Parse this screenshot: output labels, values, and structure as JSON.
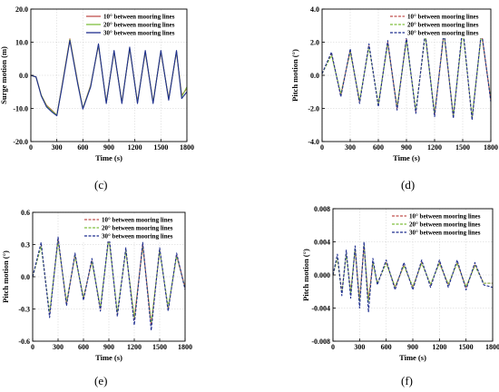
{
  "figure": {
    "captions": [
      "(c)",
      "(d)",
      "(e)",
      "(f)"
    ],
    "series_colors": [
      "#c0504d",
      "#7fbf3f",
      "#1f2f8f"
    ]
  },
  "chart_data": [
    {
      "id": "c",
      "type": "line",
      "caption": "(c)",
      "xlabel": "Time (s)",
      "ylabel": "Surge motion (m)",
      "xlim": [
        0,
        1800
      ],
      "ylim": [
        -20,
        20
      ],
      "xticks": [
        "0",
        "300",
        "600",
        "900",
        "1200",
        "1500",
        "1800"
      ],
      "yticks": [
        "-20.0",
        "-10.0",
        "0.0",
        "10.0",
        "20.0"
      ],
      "xtick_values": [
        0,
        300,
        600,
        900,
        1200,
        1500,
        1800
      ],
      "ytick_values": [
        -20,
        -10,
        0,
        10,
        20
      ],
      "legend_position": "top-right",
      "line_styles": [
        "solid",
        "solid",
        "solid"
      ],
      "series": [
        {
          "name": "10° between mooring lines",
          "color": "#c0504d",
          "x": [
            0,
            60,
            120,
            180,
            240,
            300,
            360,
            450,
            540,
            600,
            690,
            780,
            870,
            960,
            1050,
            1140,
            1230,
            1320,
            1410,
            1500,
            1590,
            1680,
            1740,
            1800
          ],
          "y": [
            0,
            -0.5,
            -6,
            -9,
            -10.5,
            -12,
            -3,
            11,
            -2,
            -10,
            -3,
            9,
            -8,
            7,
            -8,
            8,
            -8,
            7,
            -8,
            7,
            -7,
            7,
            -6,
            -4
          ]
        },
        {
          "name": "20° between mooring lines",
          "color": "#7fbf3f",
          "x": [
            0,
            60,
            120,
            180,
            240,
            300,
            360,
            450,
            540,
            600,
            690,
            780,
            870,
            960,
            1050,
            1140,
            1230,
            1320,
            1410,
            1500,
            1590,
            1680,
            1740,
            1800
          ],
          "y": [
            0,
            -0.5,
            -6,
            -9.2,
            -10.7,
            -12,
            -3.2,
            10.8,
            -2.2,
            -10,
            -3.2,
            9.2,
            -8.2,
            7.2,
            -8.2,
            8.2,
            -8.2,
            7.2,
            -8.2,
            7.3,
            -7.2,
            7.2,
            -6.5,
            -3.5
          ]
        },
        {
          "name": "30° between mooring lines",
          "color": "#1f2f8f",
          "x": [
            0,
            60,
            120,
            180,
            240,
            300,
            360,
            450,
            540,
            600,
            690,
            780,
            870,
            960,
            1050,
            1140,
            1230,
            1320,
            1410,
            1500,
            1590,
            1680,
            1740,
            1800
          ],
          "y": [
            0,
            -0.5,
            -6.2,
            -9.5,
            -11,
            -12.2,
            -3.5,
            10.5,
            -2.5,
            -10.2,
            -3.5,
            9.5,
            -8.5,
            7.5,
            -8.5,
            8.5,
            -8.5,
            7.5,
            -8.5,
            7.5,
            -7.5,
            7.5,
            -7,
            -5
          ]
        }
      ]
    },
    {
      "id": "d",
      "type": "line",
      "caption": "(d)",
      "xlabel": "Time (s)",
      "ylabel": "Pitch motion (°)",
      "xlim": [
        0,
        1800
      ],
      "ylim": [
        -4,
        4
      ],
      "xticks": [
        "0",
        "300",
        "600",
        "900",
        "1200",
        "1500",
        "1800"
      ],
      "yticks": [
        "-4.0",
        "-2.0",
        "0.0",
        "2.0",
        "4.0"
      ],
      "xtick_values": [
        0,
        300,
        600,
        900,
        1200,
        1500,
        1800
      ],
      "ytick_values": [
        -4,
        -2,
        0,
        2,
        4
      ],
      "legend_position": "top-right",
      "line_styles": [
        "dash",
        "dash",
        "dash"
      ],
      "series": [
        {
          "name": "10° between mooring lines",
          "color": "#c0504d",
          "x": [
            0,
            100,
            200,
            300,
            400,
            500,
            600,
            700,
            800,
            900,
            1000,
            1100,
            1200,
            1300,
            1400,
            1500,
            1600,
            1700,
            1800
          ],
          "y": [
            0.1,
            1.3,
            -1.2,
            1.5,
            -1.6,
            1.8,
            -1.8,
            2,
            -2,
            2.2,
            -2.2,
            2.5,
            -2.4,
            2.6,
            -2.5,
            2.8,
            -2.6,
            2.6,
            -1.5
          ]
        },
        {
          "name": "20° between mooring lines",
          "color": "#7fbf3f",
          "x": [
            0,
            100,
            200,
            300,
            400,
            500,
            600,
            700,
            800,
            900,
            1000,
            1100,
            1200,
            1300,
            1400,
            1500,
            1600,
            1700,
            1800
          ],
          "y": [
            0.1,
            1.2,
            -1.1,
            1.4,
            -1.5,
            1.7,
            -1.7,
            1.9,
            -1.9,
            2.1,
            -2.1,
            2.4,
            -2.3,
            2.5,
            -2.4,
            2.7,
            -2.5,
            2.5,
            -1.4
          ]
        },
        {
          "name": "30° between mooring lines",
          "color": "#1f2f8f",
          "x": [
            0,
            100,
            200,
            300,
            400,
            500,
            600,
            700,
            800,
            900,
            1000,
            1100,
            1200,
            1300,
            1400,
            1500,
            1600,
            1700,
            1800
          ],
          "y": [
            0.1,
            1.4,
            -1.3,
            1.6,
            -1.7,
            1.9,
            -1.9,
            2.1,
            -2.1,
            2.3,
            -2.3,
            2.6,
            -2.5,
            2.7,
            -2.6,
            3,
            -2.7,
            2.7,
            -1.6
          ]
        }
      ]
    },
    {
      "id": "e",
      "type": "line",
      "caption": "(e)",
      "xlabel": "Time (s)",
      "ylabel": "Pitch motion (°)",
      "xlim": [
        0,
        1800
      ],
      "ylim": [
        -0.6,
        0.6
      ],
      "xticks": [
        "0",
        "300",
        "600",
        "900",
        "1200",
        "1500",
        "1800"
      ],
      "yticks": [
        "-0.6",
        "-0.3",
        "0.0",
        "0.3",
        "0.6"
      ],
      "xtick_values": [
        0,
        300,
        600,
        900,
        1200,
        1500,
        1800
      ],
      "ytick_values": [
        -0.6,
        -0.3,
        0,
        0.3,
        0.6
      ],
      "legend_position": "top-right",
      "line_styles": [
        "dash",
        "dash",
        "dash"
      ],
      "series": [
        {
          "name": "10° between mooring lines",
          "color": "#c0504d",
          "x": [
            0,
            100,
            200,
            300,
            400,
            500,
            600,
            700,
            800,
            900,
            1000,
            1100,
            1200,
            1300,
            1400,
            1500,
            1600,
            1700,
            1800
          ],
          "y": [
            0,
            0.3,
            -0.35,
            0.35,
            -0.25,
            0.2,
            -0.2,
            0.15,
            -0.3,
            0.38,
            -0.35,
            0.25,
            -0.4,
            0.3,
            -0.45,
            0.25,
            -0.3,
            0.2,
            -0.1
          ]
        },
        {
          "name": "20° between mooring lines",
          "color": "#7fbf3f",
          "x": [
            0,
            100,
            200,
            300,
            400,
            500,
            600,
            700,
            800,
            900,
            1000,
            1100,
            1200,
            1300,
            1400,
            1500,
            1600,
            1700,
            1800
          ],
          "y": [
            0,
            0.28,
            -0.33,
            0.33,
            -0.23,
            0.19,
            -0.19,
            0.14,
            -0.28,
            0.36,
            -0.33,
            0.24,
            -0.38,
            0.28,
            -0.43,
            0.24,
            -0.28,
            0.19,
            -0.1
          ]
        },
        {
          "name": "30° between mooring lines",
          "color": "#1f2f8f",
          "x": [
            0,
            100,
            200,
            300,
            400,
            500,
            600,
            700,
            800,
            900,
            1000,
            1100,
            1200,
            1300,
            1400,
            1500,
            1600,
            1700,
            1800
          ],
          "y": [
            0,
            0.32,
            -0.38,
            0.37,
            -0.27,
            0.22,
            -0.22,
            0.17,
            -0.32,
            0.4,
            -0.37,
            0.27,
            -0.45,
            0.32,
            -0.5,
            0.27,
            -0.32,
            0.22,
            -0.12
          ]
        }
      ]
    },
    {
      "id": "f",
      "type": "line",
      "caption": "(f)",
      "xlabel": "Time (s)",
      "ylabel": "Pitch motion (°)",
      "xlim": [
        0,
        1800
      ],
      "ylim": [
        -0.008,
        0.008
      ],
      "xticks": [
        "0",
        "300",
        "600",
        "900",
        "1200",
        "1500",
        "1800"
      ],
      "yticks": [
        "-0.008",
        "-0.004",
        "0.000",
        "0.004",
        "0.008"
      ],
      "xtick_values": [
        0,
        300,
        600,
        900,
        1200,
        1500,
        1800
      ],
      "ytick_values": [
        -0.008,
        -0.004,
        0,
        0.004,
        0.008
      ],
      "legend_position": "top-right",
      "line_styles": [
        "dash",
        "dash",
        "dash"
      ],
      "series": [
        {
          "name": "10° between mooring lines",
          "color": "#c0504d",
          "x": [
            0,
            50,
            100,
            150,
            200,
            250,
            300,
            350,
            400,
            450,
            500,
            600,
            700,
            800,
            900,
            1000,
            1100,
            1200,
            1300,
            1400,
            1500,
            1600,
            1700,
            1800
          ],
          "y": [
            0,
            0.002,
            -0.002,
            0.0025,
            -0.002,
            0.003,
            -0.003,
            0.0035,
            -0.003,
            0.0015,
            -0.001,
            0.0015,
            -0.0015,
            0.0012,
            -0.0015,
            0.0015,
            -0.0012,
            0.0015,
            -0.0012,
            0.0015,
            -0.0015,
            0.0012,
            -0.001,
            -0.001
          ]
        },
        {
          "name": "20° between mooring lines",
          "color": "#7fbf3f",
          "x": [
            0,
            50,
            100,
            150,
            200,
            250,
            300,
            350,
            400,
            450,
            500,
            600,
            700,
            800,
            900,
            1000,
            1100,
            1200,
            1300,
            1400,
            1500,
            1600,
            1700,
            1800
          ],
          "y": [
            0,
            0.002,
            -0.0022,
            0.0025,
            -0.0022,
            0.0032,
            -0.0032,
            0.0036,
            -0.0032,
            0.0014,
            -0.001,
            0.0014,
            -0.0014,
            0.0011,
            -0.0014,
            0.0014,
            -0.0011,
            0.0014,
            -0.0011,
            0.0014,
            -0.0014,
            0.0011,
            -0.001,
            -0.001
          ]
        },
        {
          "name": "30° between mooring lines",
          "color": "#1f2f8f",
          "x": [
            0,
            50,
            100,
            150,
            200,
            250,
            300,
            350,
            400,
            450,
            500,
            600,
            700,
            800,
            900,
            1000,
            1100,
            1200,
            1300,
            1400,
            1500,
            1600,
            1700,
            1800
          ],
          "y": [
            0,
            0.0025,
            -0.0025,
            0.003,
            -0.0028,
            0.0035,
            -0.004,
            0.004,
            -0.0045,
            0.002,
            -0.0012,
            0.0018,
            -0.0018,
            0.0015,
            -0.0018,
            0.0018,
            -0.0015,
            0.0018,
            -0.0015,
            0.0018,
            -0.0018,
            0.0015,
            -0.0012,
            -0.0015
          ]
        }
      ]
    }
  ]
}
